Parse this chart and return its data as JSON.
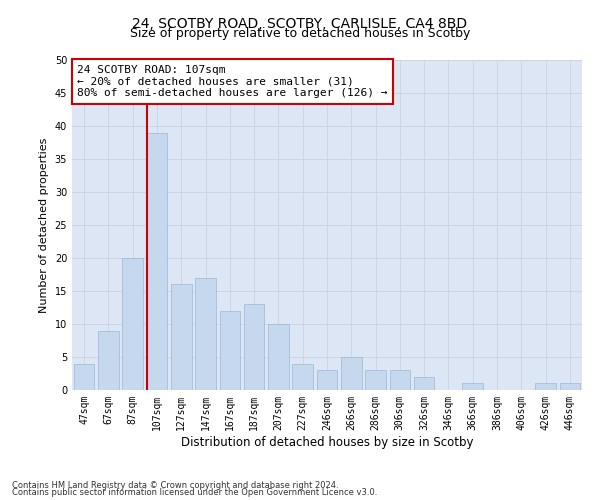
{
  "title1": "24, SCOTBY ROAD, SCOTBY, CARLISLE, CA4 8BD",
  "title2": "Size of property relative to detached houses in Scotby",
  "xlabel": "Distribution of detached houses by size in Scotby",
  "ylabel": "Number of detached properties",
  "categories": [
    "47sqm",
    "67sqm",
    "87sqm",
    "107sqm",
    "127sqm",
    "147sqm",
    "167sqm",
    "187sqm",
    "207sqm",
    "227sqm",
    "246sqm",
    "266sqm",
    "286sqm",
    "306sqm",
    "326sqm",
    "346sqm",
    "366sqm",
    "386sqm",
    "406sqm",
    "426sqm",
    "446sqm"
  ],
  "values": [
    4,
    9,
    20,
    39,
    16,
    17,
    12,
    13,
    10,
    4,
    3,
    5,
    3,
    3,
    2,
    0,
    1,
    0,
    0,
    1,
    1
  ],
  "bar_color": "#c5d8ed",
  "bar_edge_color": "#9ab8d8",
  "vline_color": "#cc0000",
  "annotation_text": "24 SCOTBY ROAD: 107sqm\n← 20% of detached houses are smaller (31)\n80% of semi-detached houses are larger (126) →",
  "annotation_box_color": "white",
  "annotation_box_edgecolor": "#cc0000",
  "ylim": [
    0,
    50
  ],
  "yticks": [
    0,
    5,
    10,
    15,
    20,
    25,
    30,
    35,
    40,
    45,
    50
  ],
  "grid_color": "#ccd5e8",
  "background_color": "#dce6f5",
  "footer1": "Contains HM Land Registry data © Crown copyright and database right 2024.",
  "footer2": "Contains public sector information licensed under the Open Government Licence v3.0.",
  "title1_fontsize": 10,
  "title2_fontsize": 9,
  "ylabel_fontsize": 8,
  "xlabel_fontsize": 8.5,
  "tick_fontsize": 7,
  "annotation_fontsize": 8,
  "footer_fontsize": 6
}
